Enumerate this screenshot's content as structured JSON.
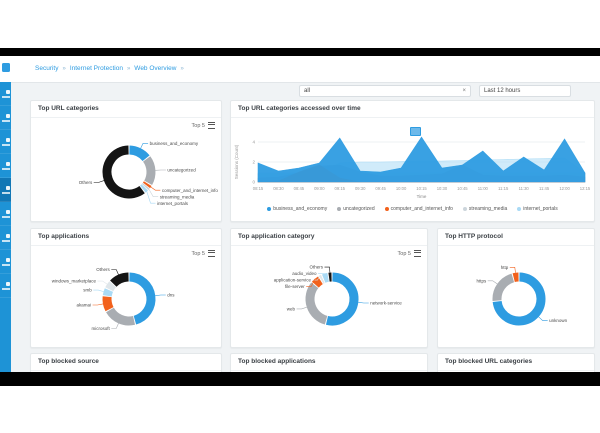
{
  "breadcrumb": {
    "items": [
      "Security",
      "Internet Protection",
      "Web Overview"
    ],
    "separator": "»"
  },
  "filters": {
    "scope_value": "all",
    "clear_icon": "×",
    "time_range": "Last 12 hours"
  },
  "colors": {
    "blue": "#2e9ce1",
    "gray": "#a9adb2",
    "orange": "#f2611c",
    "pale": "#ccd5db",
    "lightblue": "#a9daf5",
    "black": "#141414",
    "sidebar": "#1e93d6"
  },
  "chart_data": [
    {
      "id": "top_url_categories",
      "type": "donut",
      "title": "Top URL categories",
      "top_label": "Top 5",
      "items": [
        {
          "label": "business_and_economy",
          "value": 14.5,
          "color": "#2e9ce1"
        },
        {
          "label": "uncategorized",
          "value": 19,
          "color": "#a9adb2"
        },
        {
          "label": "computer_and_internet_info",
          "value": 2.2,
          "color": "#f2611c"
        },
        {
          "label": "streaming_media",
          "value": 1.3,
          "color": "#ccd5db"
        },
        {
          "label": "internet_portals",
          "value": 2.5,
          "color": "#a9daf5"
        },
        {
          "label": "Others",
          "value": 60.5,
          "color": "#141414"
        }
      ]
    },
    {
      "id": "top_url_categories_over_time",
      "type": "area",
      "title": "Top URL categories accessed over time",
      "xlabel": "Time",
      "ylabel": "Sessions (Count)",
      "yticks": [
        0,
        2,
        4
      ],
      "ylim": [
        0,
        5
      ],
      "x": [
        "08:15",
        "08:30",
        "08:45",
        "09:00",
        "09:15",
        "09:30",
        "09:45",
        "10:00",
        "10:15",
        "10:30",
        "10:45",
        "11:00",
        "11:15",
        "11:30",
        "11:45",
        "12:00",
        "12:15"
      ],
      "series": [
        {
          "name": "business_and_economy",
          "color": "#2e9ce1",
          "opacity": 0.95,
          "values": [
            1.9,
            1.1,
            1.4,
            1.9,
            4.4,
            1.1,
            1.0,
            1.4,
            4.5,
            1.4,
            1.7,
            3.1,
            1.1,
            2.5,
            1.2,
            4.3,
            0.9
          ]
        },
        {
          "name": "uncategorized",
          "color": "#a9adb2",
          "opacity": 0.9,
          "values": [
            0.4,
            0.5,
            0.9,
            1.6,
            1.7,
            1.0,
            0.6,
            0.6,
            0.7,
            0.8,
            1.7,
            0.7,
            0.6,
            0.6,
            0.6,
            0.7,
            0.5
          ]
        },
        {
          "name": "computer_and_internet_info",
          "color": "#f2611c",
          "opacity": 0.9,
          "values": [
            0,
            0.1,
            1.0,
            1.7,
            0.4,
            0,
            0,
            0,
            0,
            0,
            0,
            0,
            0,
            0,
            0,
            0,
            0
          ]
        },
        {
          "name": "streaming_media",
          "color": "#ccd5db",
          "opacity": 0.8,
          "values": [
            0.9,
            0.9,
            0.9,
            0.9,
            0.9,
            0.9,
            0.9,
            0.9,
            0.9,
            0.9,
            0.9,
            0.9,
            0.9,
            0.9,
            0.9,
            0.9,
            0.9
          ]
        },
        {
          "name": "internet_portals",
          "color": "#a9daf5",
          "opacity": 0.55,
          "values": [
            0.8,
            0.8,
            0.8,
            0.9,
            1.9,
            2.0,
            2.0,
            2.05,
            2.1,
            2.1,
            2.15,
            2.2,
            2.25,
            2.3,
            2.35,
            2.4,
            0.9
          ]
        }
      ],
      "draw_order": [
        3,
        4,
        1,
        2,
        0
      ],
      "legend_position": "bottom"
    },
    {
      "id": "top_applications",
      "type": "donut",
      "title": "Top applications",
      "top_label": "Top 5",
      "items": [
        {
          "label": "dns",
          "value": 46,
          "color": "#2e9ce1"
        },
        {
          "label": "microsoft",
          "value": 21,
          "color": "#a9adb2"
        },
        {
          "label": "akamai",
          "value": 10,
          "color": "#f2611c"
        },
        {
          "label": "smb",
          "value": 5,
          "color": "#a9daf5"
        },
        {
          "label": "windows_marketplace",
          "value": 5,
          "color": "#dfe6ea"
        },
        {
          "label": "Others",
          "value": 13,
          "color": "#141414"
        }
      ]
    },
    {
      "id": "top_application_category",
      "type": "donut",
      "title": "Top application category",
      "top_label": "Top 5",
      "items": [
        {
          "label": "network-service",
          "value": 54,
          "color": "#2e9ce1"
        },
        {
          "label": "web",
          "value": 32,
          "color": "#a9adb2"
        },
        {
          "label": "file-server",
          "value": 5.5,
          "color": "#f2611c"
        },
        {
          "label": "application-service",
          "value": 2,
          "color": "#dfe6ea"
        },
        {
          "label": "audio_video",
          "value": 4,
          "color": "#a9daf5"
        },
        {
          "label": "Others",
          "value": 2.5,
          "color": "#141414"
        }
      ]
    },
    {
      "id": "top_http_protocol",
      "type": "donut",
      "title": "Top HTTP protocol",
      "items": [
        {
          "label": "unknown",
          "value": 73.5,
          "color": "#2e9ce1"
        },
        {
          "label": "https",
          "value": 22.3,
          "color": "#a9adb2"
        },
        {
          "label": "http",
          "value": 4.2,
          "color": "#f2611c"
        }
      ]
    }
  ],
  "blocked_cards": {
    "source_title": "Top blocked source",
    "applications_title": "Top blocked applications",
    "url_categories_title": "Top blocked URL categories"
  }
}
